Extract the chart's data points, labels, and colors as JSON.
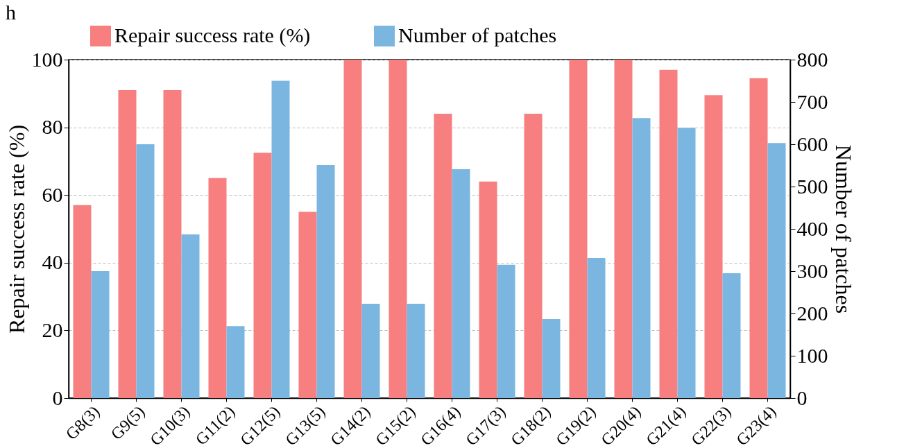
{
  "chart_data": {
    "type": "bar",
    "annotations": [
      "h"
    ],
    "ylabel": "Repair success rate (%)",
    "y2label": "Number of patches",
    "categories": [
      "G8(3)",
      "G9(5)",
      "G10(3)",
      "G11(2)",
      "G12(5)",
      "G13(5)",
      "G14(2)",
      "G15(2)",
      "G16(4)",
      "G17(3)",
      "G18(2)",
      "G19(2)",
      "G20(4)",
      "G21(4)",
      "G22(3)",
      "G23(4)"
    ],
    "series": [
      {
        "name": "Repair success rate (%)",
        "color": "#f77f7f",
        "axis": "y",
        "values": [
          57,
          91,
          91,
          65,
          72.5,
          55,
          100,
          100,
          84,
          64,
          84,
          100,
          100,
          97,
          89.5,
          94.5
        ]
      },
      {
        "name": "Number of patches",
        "color": "#7ab6e0",
        "axis": "y2",
        "values": [
          300,
          600,
          387,
          170,
          750,
          551,
          223,
          223,
          541,
          315,
          187,
          331,
          662,
          639,
          295,
          603
        ]
      }
    ],
    "ylim": [
      0,
      100
    ],
    "yticks": [
      0,
      20,
      40,
      60,
      80,
      100
    ],
    "y2lim": [
      0,
      800
    ],
    "y2ticks": [
      0,
      100,
      200,
      300,
      400,
      500,
      600,
      700,
      800
    ],
    "grid": "y",
    "legend": "top"
  }
}
